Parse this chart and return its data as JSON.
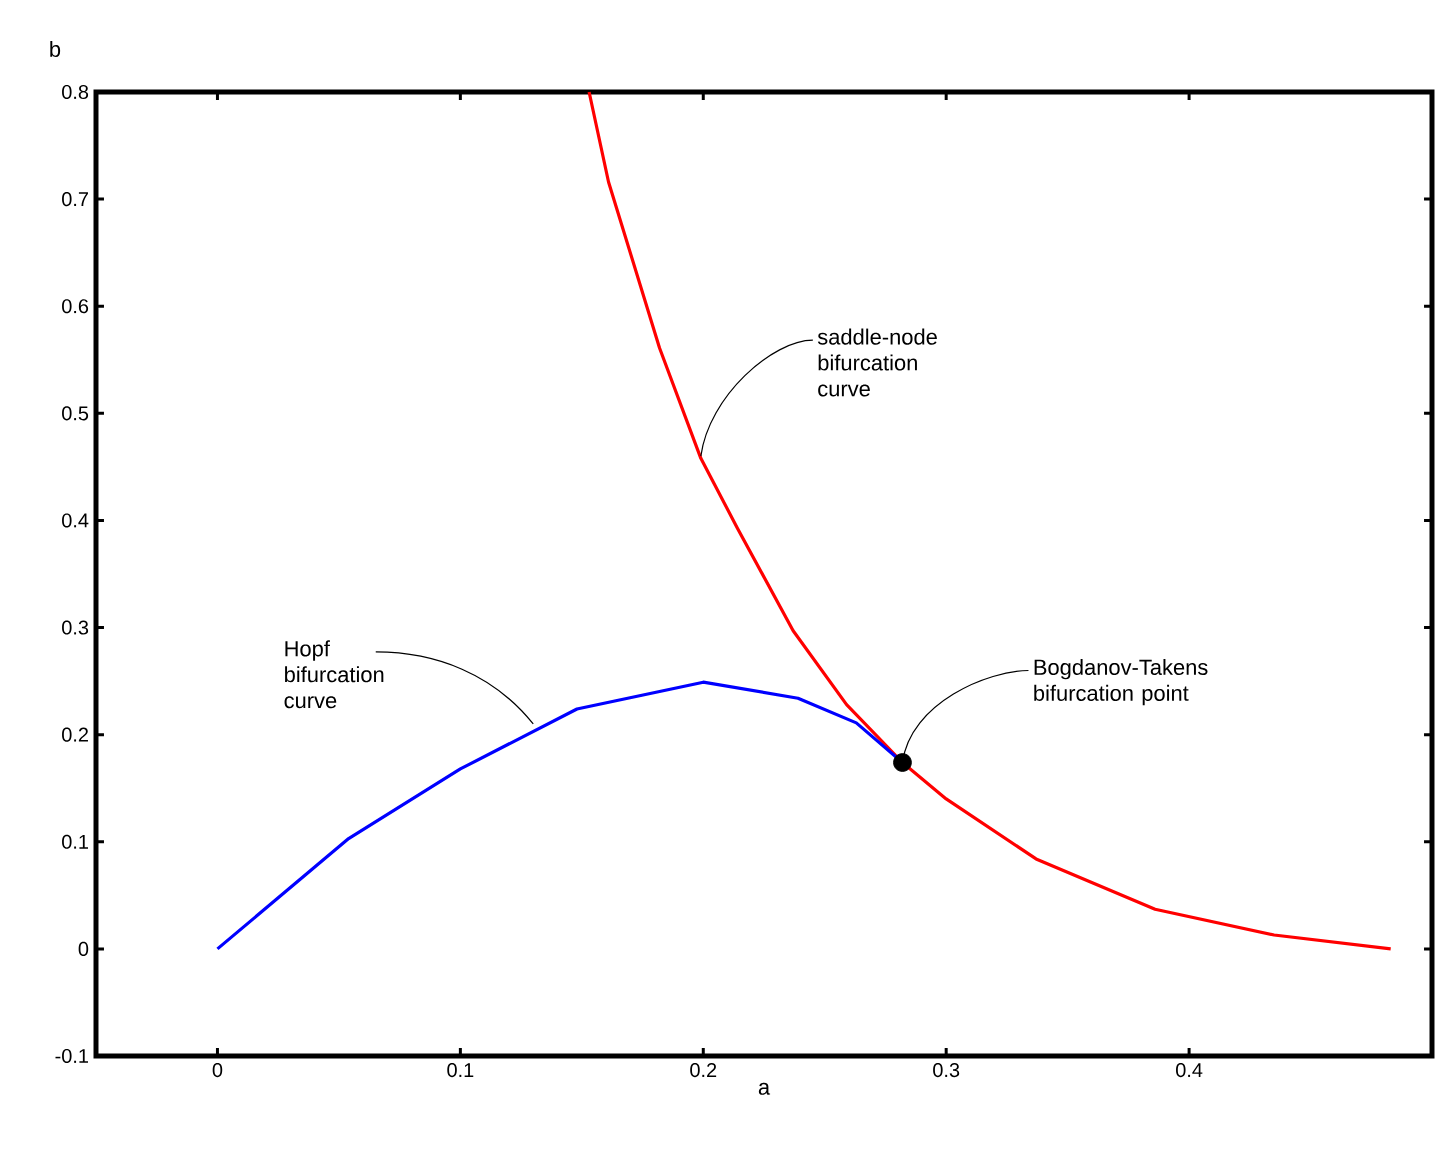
{
  "chart_data": {
    "type": "line",
    "xlabel": "a",
    "ylabel": "b",
    "xlim": [
      -0.05,
      0.5
    ],
    "ylim": [
      -0.1,
      0.8
    ],
    "xticks": [
      0,
      0.1,
      0.2,
      0.3,
      0.4
    ],
    "yticks": [
      -0.1,
      0,
      0.1,
      0.2,
      0.3,
      0.4,
      0.5,
      0.6,
      0.7,
      0.8
    ],
    "series": [
      {
        "color": "#ff0000",
        "x": [
          0.153,
          0.161,
          0.182,
          0.199,
          0.214,
          0.237,
          0.259,
          0.282,
          0.3,
          0.337,
          0.386,
          0.435,
          0.483
        ],
        "values": [
          0.8,
          0.716,
          0.561,
          0.458,
          0.393,
          0.297,
          0.228,
          0.174,
          0.14,
          0.084,
          0.037,
          0.013,
          0.0
        ]
      },
      {
        "color": "#0000ff",
        "x": [
          0,
          0.054,
          0.1,
          0.148,
          0.2,
          0.239,
          0.263,
          0.282
        ],
        "values": [
          0,
          0.103,
          0.168,
          0.224,
          0.249,
          0.234,
          0.211,
          0.174
        ]
      },
      {
        "type": "scatter",
        "color": "#000000",
        "x": [
          0.282
        ],
        "values": [
          0.174
        ]
      }
    ],
    "annotations": [
      {
        "text": "saddle-node bifurcation curve",
        "x": 0.199,
        "y": 0.46
      },
      {
        "text": "Hopf bifurcation curve",
        "x": 0.13,
        "y": 0.21
      },
      {
        "text": "Bogdanov-Takens bifurcation point",
        "x": 0.282,
        "y": 0.174
      }
    ]
  }
}
